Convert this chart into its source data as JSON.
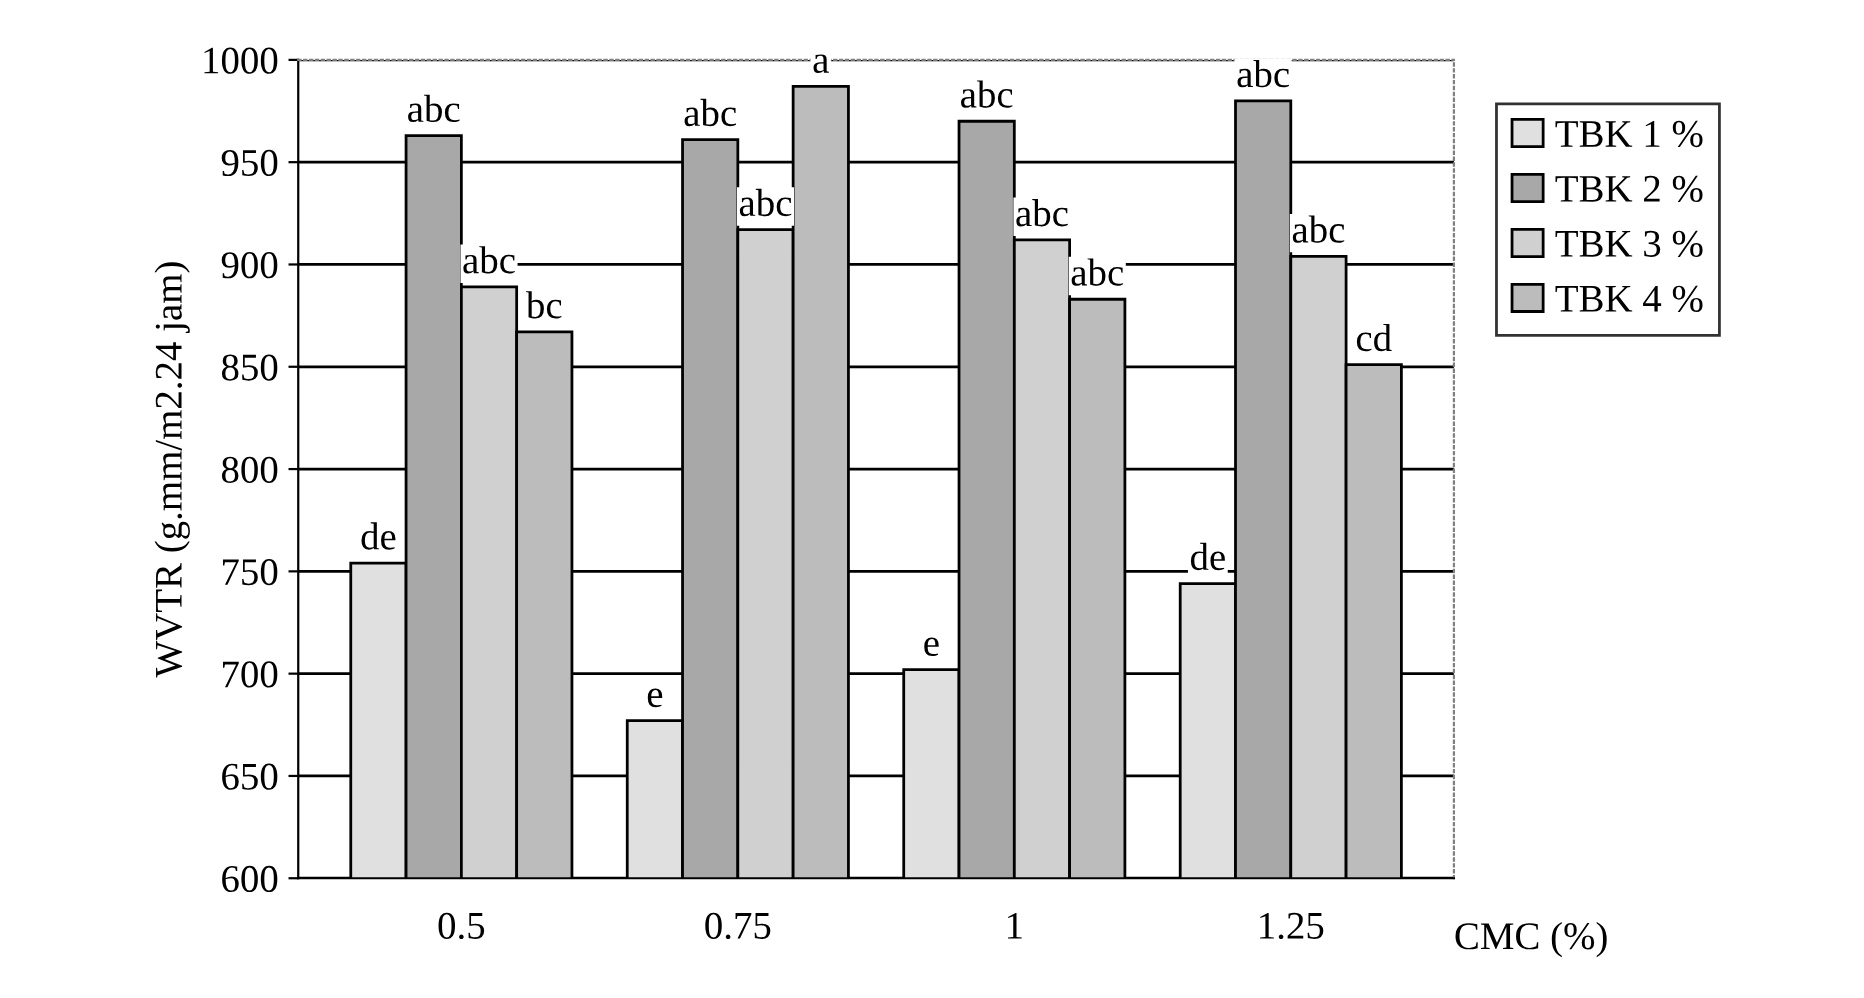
{
  "chart_data": {
    "type": "bar",
    "ylabel": "WVTR (g.mm/m2.24 jam)",
    "xlabel": "CMC (%)",
    "categories": [
      "0.5",
      "0.75",
      "1",
      "1.25"
    ],
    "series": [
      {
        "name": "TBK 1 %",
        "color": "#e0e0e0",
        "values": [
          754,
          677,
          702,
          744
        ],
        "value_labels": [
          "de",
          "e",
          "e",
          "de"
        ]
      },
      {
        "name": "TBK 2 %",
        "color": "#a8a8a8",
        "values": [
          963,
          961,
          970,
          980
        ],
        "value_labels": [
          "abc",
          "abc",
          "abc",
          "abc"
        ]
      },
      {
        "name": "TBK 3 %",
        "color": "#d0d0d0",
        "values": [
          889,
          917,
          912,
          904
        ],
        "value_labels": [
          "abc",
          "abc",
          "abc",
          "abc"
        ]
      },
      {
        "name": "TBK 4 %",
        "color": "#bcbcbc",
        "values": [
          867,
          987,
          883,
          851
        ],
        "value_labels": [
          "bc",
          "a",
          "abc",
          "cd"
        ]
      }
    ],
    "ylim": [
      600,
      1000
    ],
    "yticks": [
      600,
      650,
      700,
      750,
      800,
      850,
      900,
      950,
      1000
    ],
    "grid": "y",
    "legend": "right"
  }
}
